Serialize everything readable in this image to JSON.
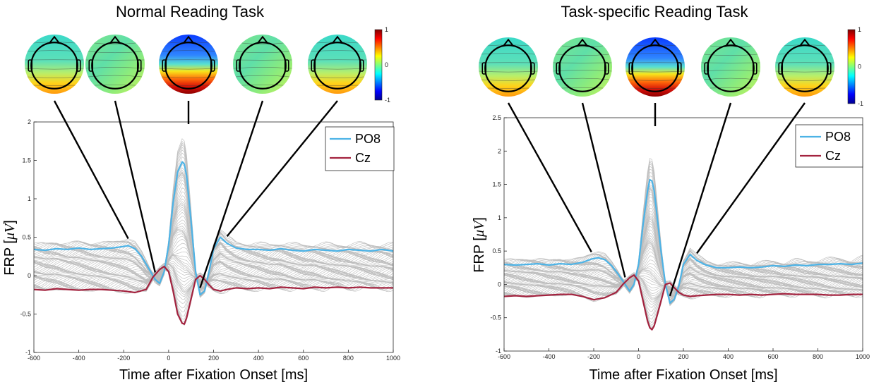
{
  "chart_data": [
    {
      "type": "line",
      "title": "Normal Reading Task",
      "xlabel": "Time after Fixation Onset [ms]",
      "ylabel": "FRP [μV]",
      "xlim": [
        -600,
        1000
      ],
      "ylim": [
        -1,
        2
      ],
      "xticks": [
        -600,
        -400,
        -200,
        0,
        200,
        400,
        600,
        800,
        1000
      ],
      "yticks": [
        -1,
        -0.5,
        0,
        0.5,
        1,
        1.5,
        2
      ],
      "legend_position": "top-right",
      "series": [
        {
          "name": "PO8",
          "color": "#4db3e6",
          "x": [
            -600,
            -550,
            -500,
            -450,
            -400,
            -350,
            -300,
            -250,
            -200,
            -180,
            -150,
            -120,
            -90,
            -60,
            -40,
            -20,
            0,
            20,
            40,
            60,
            70,
            80,
            100,
            120,
            140,
            160,
            180,
            200,
            230,
            260,
            300,
            350,
            400,
            450,
            500,
            550,
            600,
            650,
            700,
            750,
            800,
            850,
            900,
            950,
            1000
          ],
          "y": [
            0.34,
            0.33,
            0.35,
            0.34,
            0.36,
            0.34,
            0.35,
            0.36,
            0.38,
            0.39,
            0.35,
            0.25,
            0.1,
            -0.05,
            -0.1,
            0.05,
            0.4,
            0.95,
            1.35,
            1.48,
            1.45,
            1.3,
            0.7,
            0.05,
            -0.25,
            -0.2,
            0.05,
            0.35,
            0.5,
            0.42,
            0.36,
            0.34,
            0.34,
            0.33,
            0.35,
            0.33,
            0.32,
            0.34,
            0.33,
            0.32,
            0.34,
            0.33,
            0.32,
            0.34,
            0.32
          ]
        },
        {
          "name": "Cz",
          "color": "#a3233f",
          "x": [
            -600,
            -550,
            -500,
            -450,
            -400,
            -350,
            -300,
            -250,
            -200,
            -150,
            -100,
            -70,
            -40,
            -20,
            0,
            20,
            40,
            60,
            70,
            80,
            100,
            120,
            140,
            160,
            180,
            200,
            230,
            260,
            300,
            350,
            400,
            450,
            500,
            550,
            600,
            650,
            700,
            750,
            800,
            850,
            900,
            950,
            1000
          ],
          "y": [
            -0.18,
            -0.19,
            -0.17,
            -0.18,
            -0.19,
            -0.18,
            -0.18,
            -0.19,
            -0.2,
            -0.22,
            -0.18,
            -0.02,
            0.08,
            0.12,
            0.05,
            -0.2,
            -0.5,
            -0.62,
            -0.63,
            -0.55,
            -0.3,
            -0.05,
            0.0,
            -0.05,
            -0.12,
            -0.18,
            -0.2,
            -0.18,
            -0.16,
            -0.17,
            -0.16,
            -0.17,
            -0.15,
            -0.16,
            -0.17,
            -0.15,
            -0.16,
            -0.15,
            -0.16,
            -0.15,
            -0.16,
            -0.16,
            -0.16
          ]
        }
      ],
      "background_channels": "gray traces for all electrodes",
      "topomap_colorbar": {
        "min": -1,
        "max": 1,
        "ticks": [
          "1",
          "0",
          "-1"
        ],
        "colormap": "jet"
      }
    },
    {
      "type": "line",
      "title": "Task-specific Reading Task",
      "xlabel": "Time after Fixation Onset [ms]",
      "ylabel": "FRP [μV]",
      "xlim": [
        -600,
        1000
      ],
      "ylim": [
        -1,
        2.5
      ],
      "xticks": [
        -600,
        -400,
        -200,
        0,
        200,
        400,
        600,
        800,
        1000
      ],
      "yticks": [
        -1,
        -0.5,
        0,
        0.5,
        1,
        1.5,
        2,
        2.5
      ],
      "legend_position": "top-right",
      "series": [
        {
          "name": "PO8",
          "color": "#4db3e6",
          "x": [
            -600,
            -550,
            -500,
            -450,
            -400,
            -350,
            -300,
            -250,
            -210,
            -180,
            -150,
            -120,
            -90,
            -60,
            -40,
            -20,
            0,
            20,
            40,
            50,
            60,
            70,
            80,
            100,
            120,
            140,
            160,
            180,
            200,
            230,
            260,
            300,
            350,
            400,
            450,
            500,
            550,
            600,
            650,
            700,
            750,
            800,
            850,
            900,
            950,
            1000
          ],
          "y": [
            0.3,
            0.29,
            0.3,
            0.31,
            0.29,
            0.31,
            0.3,
            0.33,
            0.38,
            0.4,
            0.37,
            0.28,
            0.15,
            0.0,
            -0.1,
            0.0,
            0.3,
            0.9,
            1.4,
            1.57,
            1.55,
            1.4,
            1.1,
            0.5,
            0.0,
            -0.28,
            -0.22,
            -0.02,
            0.3,
            0.45,
            0.36,
            0.29,
            0.25,
            0.25,
            0.26,
            0.25,
            0.26,
            0.28,
            0.27,
            0.29,
            0.28,
            0.3,
            0.3,
            0.31,
            0.3,
            0.32
          ]
        },
        {
          "name": "Cz",
          "color": "#a3233f",
          "x": [
            -600,
            -550,
            -500,
            -450,
            -400,
            -350,
            -300,
            -250,
            -200,
            -150,
            -100,
            -70,
            -40,
            -20,
            0,
            20,
            40,
            50,
            60,
            70,
            80,
            100,
            120,
            140,
            160,
            180,
            200,
            230,
            260,
            300,
            350,
            400,
            450,
            500,
            550,
            600,
            650,
            700,
            750,
            800,
            850,
            900,
            950,
            1000
          ],
          "y": [
            -0.18,
            -0.17,
            -0.18,
            -0.17,
            -0.16,
            -0.15,
            -0.15,
            -0.18,
            -0.23,
            -0.2,
            -0.12,
            0.0,
            0.1,
            0.14,
            0.05,
            -0.25,
            -0.55,
            -0.65,
            -0.68,
            -0.62,
            -0.5,
            -0.25,
            0.0,
            0.02,
            -0.05,
            -0.12,
            -0.16,
            -0.18,
            -0.17,
            -0.16,
            -0.15,
            -0.15,
            -0.16,
            -0.15,
            -0.16,
            -0.15,
            -0.14,
            -0.15,
            -0.15,
            -0.15,
            -0.16,
            -0.16,
            -0.15,
            -0.15
          ]
        }
      ],
      "background_channels": "gray traces for all electrodes",
      "topomap_colorbar": {
        "min": -1,
        "max": 1,
        "ticks": [
          "1",
          "0",
          "-1"
        ],
        "colormap": "jet"
      }
    }
  ],
  "panels": [
    {
      "title": "Normal Reading Task",
      "xlabel": "Time after Fixation Onset [ms]",
      "ylabel_prefix": "FRP [",
      "ylabel_unit": "μV",
      "ylabel_suffix": "]",
      "legend": [
        "PO8",
        "Cz"
      ],
      "colorbar_ticks": [
        "1",
        "0",
        "-1"
      ],
      "topomaps": [
        {
          "time_ms": -180,
          "pattern": "neutral-posterior-warm"
        },
        {
          "time_ms": -60,
          "pattern": "neutral"
        },
        {
          "time_ms": 70,
          "pattern": "frontal-negative-posterior-positive"
        },
        {
          "time_ms": 140,
          "pattern": "neutral"
        },
        {
          "time_ms": 260,
          "pattern": "neutral-posterior-warm"
        }
      ]
    },
    {
      "title": "Task-specific Reading Task",
      "xlabel": "Time after Fixation Onset [ms]",
      "ylabel_prefix": "FRP [",
      "ylabel_unit": "μV",
      "ylabel_suffix": "]",
      "legend": [
        "PO8",
        "Cz"
      ],
      "colorbar_ticks": [
        "1",
        "0",
        "-1"
      ],
      "topomaps": [
        {
          "time_ms": -210,
          "pattern": "neutral-posterior-warm"
        },
        {
          "time_ms": -60,
          "pattern": "neutral"
        },
        {
          "time_ms": 50,
          "pattern": "frontal-negative-posterior-positive"
        },
        {
          "time_ms": 140,
          "pattern": "neutral"
        },
        {
          "time_ms": 260,
          "pattern": "neutral-posterior-warm"
        }
      ]
    }
  ],
  "colors": {
    "po8": "#4db3e6",
    "cz": "#a3233f",
    "gray_traces": "#bdbdbd"
  }
}
